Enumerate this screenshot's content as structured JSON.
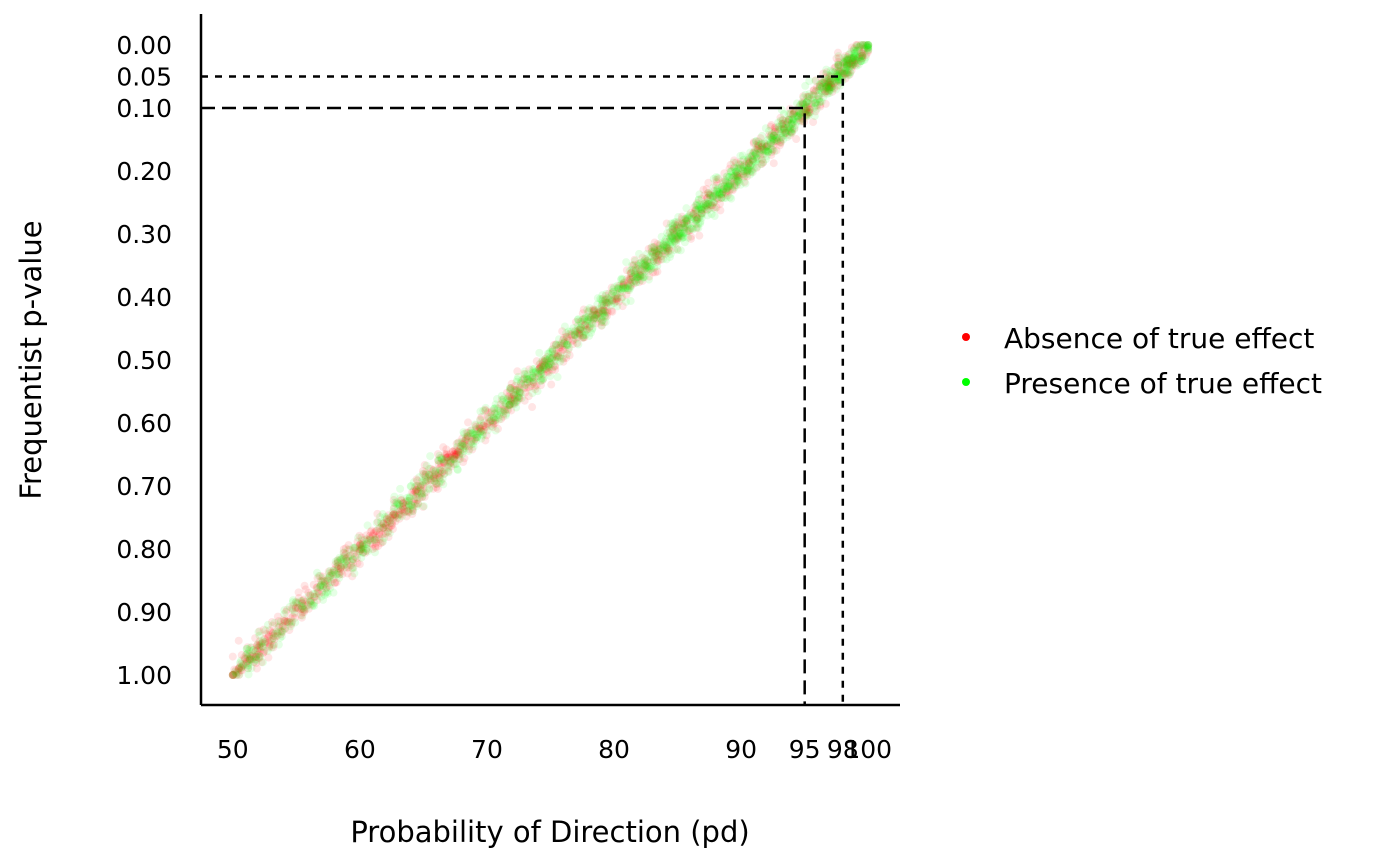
{
  "chart_data": {
    "type": "scatter",
    "title": "",
    "xlabel": "Probability of Direction (pd)",
    "ylabel": "Frequentist p-value",
    "xlim": [
      47.5,
      102.5
    ],
    "ylim": [
      0,
      1.05
    ],
    "y_reversed": true,
    "x_ticks": [
      {
        "value": 50,
        "label": "50"
      },
      {
        "value": 60,
        "label": "60"
      },
      {
        "value": 70,
        "label": "70"
      },
      {
        "value": 80,
        "label": "80"
      },
      {
        "value": 90,
        "label": "90"
      },
      {
        "value": 95,
        "label": "95"
      },
      {
        "value": 98,
        "label": "98"
      },
      {
        "value": 100,
        "label": "100"
      }
    ],
    "y_ticks": [
      {
        "value": 0.0,
        "label": "0.00"
      },
      {
        "value": 0.05,
        "label": "0.05"
      },
      {
        "value": 0.1,
        "label": "0.10"
      },
      {
        "value": 0.2,
        "label": "0.20"
      },
      {
        "value": 0.3,
        "label": "0.30"
      },
      {
        "value": 0.4,
        "label": "0.40"
      },
      {
        "value": 0.5,
        "label": "0.50"
      },
      {
        "value": 0.6,
        "label": "0.60"
      },
      {
        "value": 0.7,
        "label": "0.70"
      },
      {
        "value": 0.8,
        "label": "0.80"
      },
      {
        "value": 0.9,
        "label": "0.90"
      },
      {
        "value": 1.0,
        "label": "1.00"
      }
    ],
    "reference_lines": [
      {
        "pd": 95,
        "p": 0.1,
        "style": "long-dash"
      },
      {
        "pd": 98,
        "p": 0.05,
        "style": "short-dash"
      }
    ],
    "relationship": "p = 2 * (1 - pd/100)",
    "grid": false,
    "legend_position": "right",
    "series": [
      {
        "name": "Absence of true effect",
        "color": "#ff0000",
        "opacity": 0.1,
        "pd_range": [
          50,
          100
        ]
      },
      {
        "name": "Presence of true effect",
        "color": "#00ff00",
        "opacity": 0.1,
        "pd_range": [
          50,
          100
        ]
      }
    ]
  }
}
